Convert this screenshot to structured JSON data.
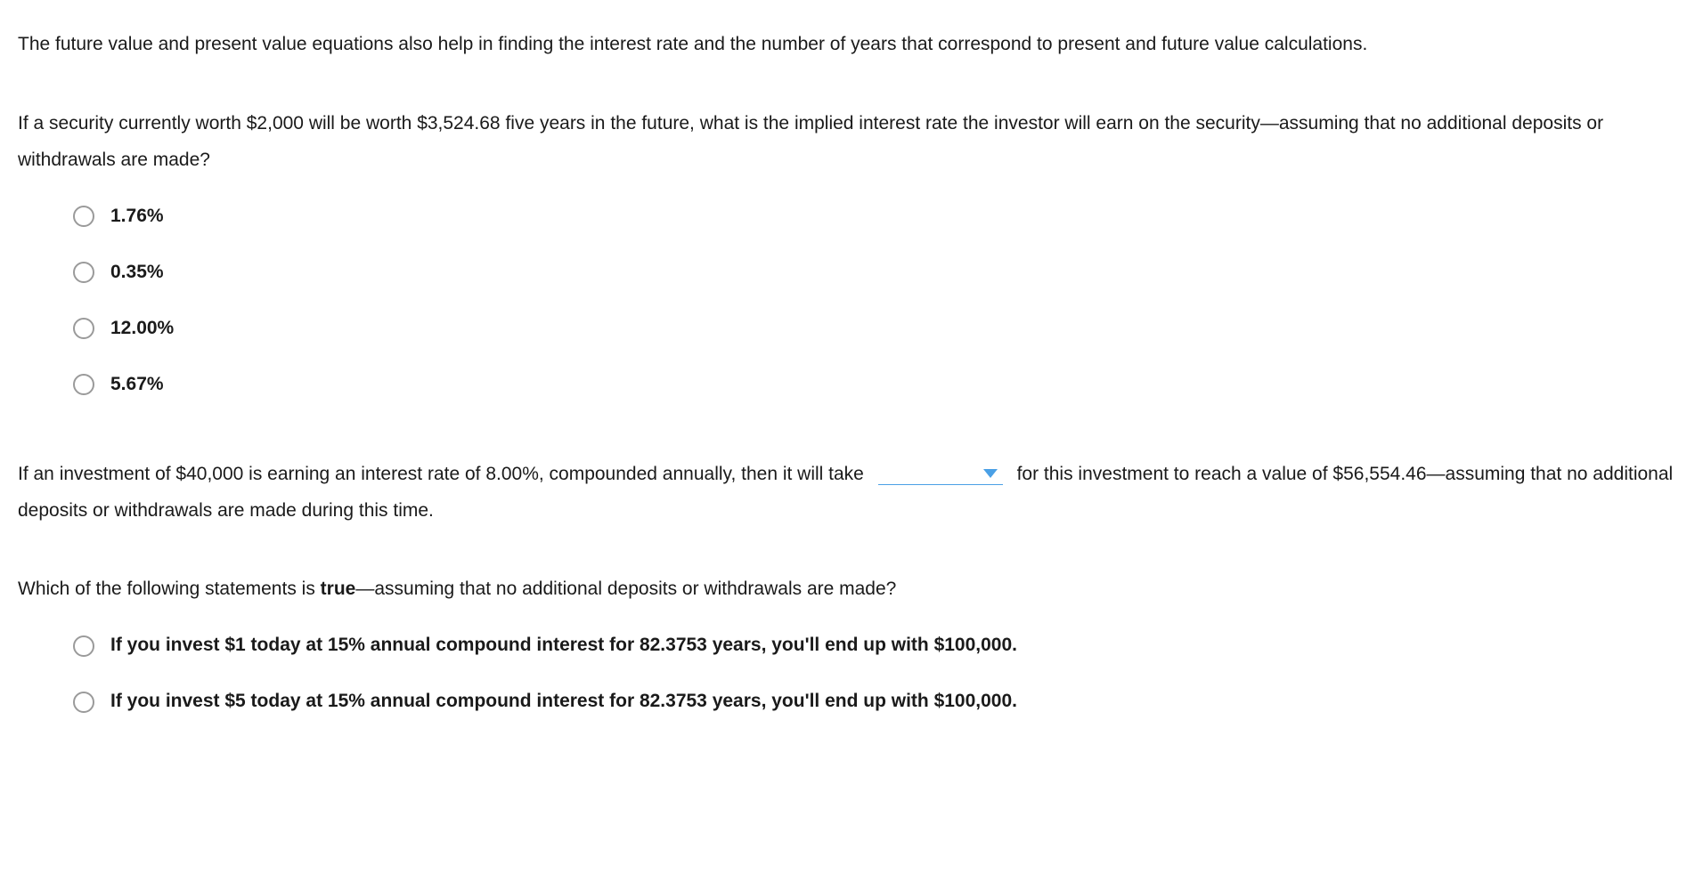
{
  "intro": "The future value and present value equations also help in finding the interest rate and the number of years that correspond to present and future value calculations.",
  "q1": {
    "prompt": "If a security currently worth $2,000 will be worth $3,524.68 five years in the future, what is the implied interest rate the investor will earn on the security—assuming that no additional deposits or withdrawals are made?",
    "options": [
      "1.76%",
      "0.35%",
      "12.00%",
      "5.67%"
    ]
  },
  "q2": {
    "prompt_before": "If an investment of $40,000 is earning an interest rate of 8.00%, compounded annually, then it will take",
    "dropdown_value": "",
    "prompt_after": "for this investment to reach a value of $56,554.46—assuming that no additional deposits or withdrawals are made during this time."
  },
  "q3": {
    "prompt_before_bold": "Which of the following statements is ",
    "prompt_bold": "true",
    "prompt_after_bold": "—assuming that no additional deposits or withdrawals are made?",
    "options": [
      "If you invest $1 today at 15% annual compound interest for 82.3753 years, you'll end up with $100,000.",
      "If you invest $5 today at 15% annual compound interest for 82.3753 years, you'll end up with $100,000."
    ]
  },
  "colors": {
    "text": "#1a1a1a",
    "radio_border": "#9a9a9a",
    "dropdown_accent": "#4aa0e6",
    "background": "#ffffff"
  }
}
